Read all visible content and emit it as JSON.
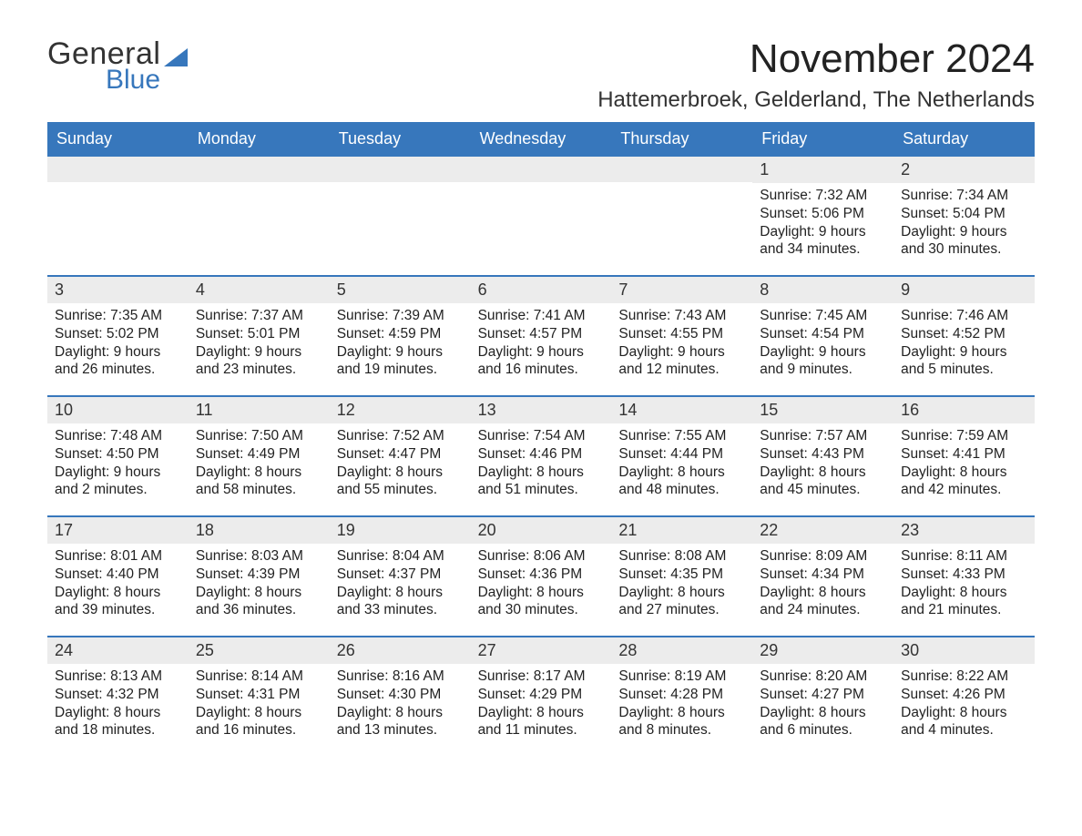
{
  "brand_color": "#3777BC",
  "daybar_color": "#ECECEC",
  "logo": {
    "line1": "General",
    "line2": "Blue",
    "triangle_color": "#3777BC"
  },
  "title": "November 2024",
  "location": "Hattemerbroek, Gelderland, The Netherlands",
  "days_of_week": [
    "Sunday",
    "Monday",
    "Tuesday",
    "Wednesday",
    "Thursday",
    "Friday",
    "Saturday"
  ],
  "weeks": [
    [
      null,
      null,
      null,
      null,
      null,
      {
        "num": "1",
        "sunrise": "7:32 AM",
        "sunset": "5:06 PM",
        "daylight1": "Daylight: 9 hours",
        "daylight2": "and 34 minutes."
      },
      {
        "num": "2",
        "sunrise": "7:34 AM",
        "sunset": "5:04 PM",
        "daylight1": "Daylight: 9 hours",
        "daylight2": "and 30 minutes."
      }
    ],
    [
      {
        "num": "3",
        "sunrise": "7:35 AM",
        "sunset": "5:02 PM",
        "daylight1": "Daylight: 9 hours",
        "daylight2": "and 26 minutes."
      },
      {
        "num": "4",
        "sunrise": "7:37 AM",
        "sunset": "5:01 PM",
        "daylight1": "Daylight: 9 hours",
        "daylight2": "and 23 minutes."
      },
      {
        "num": "5",
        "sunrise": "7:39 AM",
        "sunset": "4:59 PM",
        "daylight1": "Daylight: 9 hours",
        "daylight2": "and 19 minutes."
      },
      {
        "num": "6",
        "sunrise": "7:41 AM",
        "sunset": "4:57 PM",
        "daylight1": "Daylight: 9 hours",
        "daylight2": "and 16 minutes."
      },
      {
        "num": "7",
        "sunrise": "7:43 AM",
        "sunset": "4:55 PM",
        "daylight1": "Daylight: 9 hours",
        "daylight2": "and 12 minutes."
      },
      {
        "num": "8",
        "sunrise": "7:45 AM",
        "sunset": "4:54 PM",
        "daylight1": "Daylight: 9 hours",
        "daylight2": "and 9 minutes."
      },
      {
        "num": "9",
        "sunrise": "7:46 AM",
        "sunset": "4:52 PM",
        "daylight1": "Daylight: 9 hours",
        "daylight2": "and 5 minutes."
      }
    ],
    [
      {
        "num": "10",
        "sunrise": "7:48 AM",
        "sunset": "4:50 PM",
        "daylight1": "Daylight: 9 hours",
        "daylight2": "and 2 minutes."
      },
      {
        "num": "11",
        "sunrise": "7:50 AM",
        "sunset": "4:49 PM",
        "daylight1": "Daylight: 8 hours",
        "daylight2": "and 58 minutes."
      },
      {
        "num": "12",
        "sunrise": "7:52 AM",
        "sunset": "4:47 PM",
        "daylight1": "Daylight: 8 hours",
        "daylight2": "and 55 minutes."
      },
      {
        "num": "13",
        "sunrise": "7:54 AM",
        "sunset": "4:46 PM",
        "daylight1": "Daylight: 8 hours",
        "daylight2": "and 51 minutes."
      },
      {
        "num": "14",
        "sunrise": "7:55 AM",
        "sunset": "4:44 PM",
        "daylight1": "Daylight: 8 hours",
        "daylight2": "and 48 minutes."
      },
      {
        "num": "15",
        "sunrise": "7:57 AM",
        "sunset": "4:43 PM",
        "daylight1": "Daylight: 8 hours",
        "daylight2": "and 45 minutes."
      },
      {
        "num": "16",
        "sunrise": "7:59 AM",
        "sunset": "4:41 PM",
        "daylight1": "Daylight: 8 hours",
        "daylight2": "and 42 minutes."
      }
    ],
    [
      {
        "num": "17",
        "sunrise": "8:01 AM",
        "sunset": "4:40 PM",
        "daylight1": "Daylight: 8 hours",
        "daylight2": "and 39 minutes."
      },
      {
        "num": "18",
        "sunrise": "8:03 AM",
        "sunset": "4:39 PM",
        "daylight1": "Daylight: 8 hours",
        "daylight2": "and 36 minutes."
      },
      {
        "num": "19",
        "sunrise": "8:04 AM",
        "sunset": "4:37 PM",
        "daylight1": "Daylight: 8 hours",
        "daylight2": "and 33 minutes."
      },
      {
        "num": "20",
        "sunrise": "8:06 AM",
        "sunset": "4:36 PM",
        "daylight1": "Daylight: 8 hours",
        "daylight2": "and 30 minutes."
      },
      {
        "num": "21",
        "sunrise": "8:08 AM",
        "sunset": "4:35 PM",
        "daylight1": "Daylight: 8 hours",
        "daylight2": "and 27 minutes."
      },
      {
        "num": "22",
        "sunrise": "8:09 AM",
        "sunset": "4:34 PM",
        "daylight1": "Daylight: 8 hours",
        "daylight2": "and 24 minutes."
      },
      {
        "num": "23",
        "sunrise": "8:11 AM",
        "sunset": "4:33 PM",
        "daylight1": "Daylight: 8 hours",
        "daylight2": "and 21 minutes."
      }
    ],
    [
      {
        "num": "24",
        "sunrise": "8:13 AM",
        "sunset": "4:32 PM",
        "daylight1": "Daylight: 8 hours",
        "daylight2": "and 18 minutes."
      },
      {
        "num": "25",
        "sunrise": "8:14 AM",
        "sunset": "4:31 PM",
        "daylight1": "Daylight: 8 hours",
        "daylight2": "and 16 minutes."
      },
      {
        "num": "26",
        "sunrise": "8:16 AM",
        "sunset": "4:30 PM",
        "daylight1": "Daylight: 8 hours",
        "daylight2": "and 13 minutes."
      },
      {
        "num": "27",
        "sunrise": "8:17 AM",
        "sunset": "4:29 PM",
        "daylight1": "Daylight: 8 hours",
        "daylight2": "and 11 minutes."
      },
      {
        "num": "28",
        "sunrise": "8:19 AM",
        "sunset": "4:28 PM",
        "daylight1": "Daylight: 8 hours",
        "daylight2": "and 8 minutes."
      },
      {
        "num": "29",
        "sunrise": "8:20 AM",
        "sunset": "4:27 PM",
        "daylight1": "Daylight: 8 hours",
        "daylight2": "and 6 minutes."
      },
      {
        "num": "30",
        "sunrise": "8:22 AM",
        "sunset": "4:26 PM",
        "daylight1": "Daylight: 8 hours",
        "daylight2": "and 4 minutes."
      }
    ]
  ],
  "labels": {
    "sunrise_prefix": "Sunrise: ",
    "sunset_prefix": "Sunset: "
  }
}
